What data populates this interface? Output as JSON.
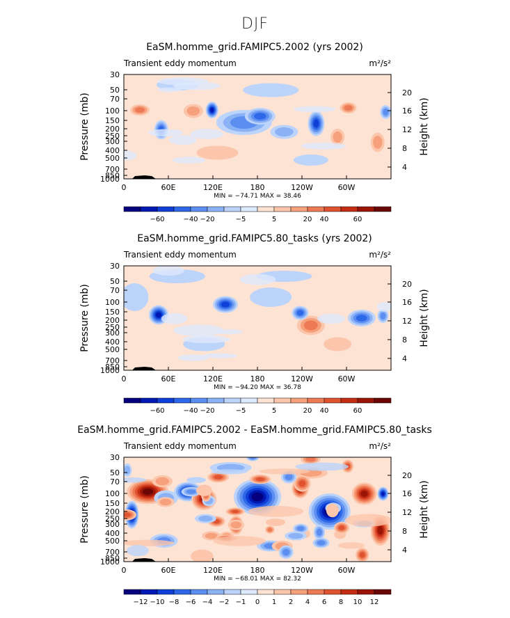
{
  "page": {
    "season_title": "DJF"
  },
  "chart_data": [
    {
      "type": "heatmap",
      "title": "EaSM.homme_grid.FAMIPC5.2002 (yrs 2002)",
      "variable": "Transient eddy momentum",
      "units": "m²/s²",
      "ylabel": "Pressure (mb)",
      "ylabel_right": "Height (km)",
      "x_ticks": [
        "0",
        "60E",
        "120E",
        "180",
        "120W",
        "60W"
      ],
      "y_ticks": [
        "30",
        "50",
        "70",
        "100",
        "150",
        "200",
        "250",
        "300",
        "400",
        "500",
        "700",
        "850",
        "1000"
      ],
      "y_ticks_right": [
        "20",
        "16",
        "12",
        "8",
        "4"
      ],
      "stats": "MIN = −74.71   MAX =  38.46",
      "min": -74.71,
      "max": 38.46,
      "colorbar_labels": [
        "−60",
        "−40",
        "−20",
        "−5",
        "5",
        "20",
        "40",
        "60"
      ],
      "colorbar_colors": [
        "#06007f",
        "#0019b4",
        "#0f3fd6",
        "#2e68e8",
        "#5c8df0",
        "#8cb2f6",
        "#bcd3fa",
        "#dde9fd",
        "#fde3d4",
        "#fbc6ab",
        "#f6a07c",
        "#ee7a55",
        "#e05330",
        "#c42d13",
        "#9a1508",
        "#6b0606"
      ]
    },
    {
      "type": "heatmap",
      "title": "EaSM.homme_grid.FAMIPC5.80_tasks (yrs 2002)",
      "variable": "Transient eddy momentum",
      "units": "m²/s²",
      "ylabel": "Pressure (mb)",
      "ylabel_right": "Height (km)",
      "x_ticks": [
        "0",
        "60E",
        "120E",
        "180",
        "120W",
        "60W"
      ],
      "y_ticks": [
        "30",
        "50",
        "70",
        "100",
        "150",
        "200",
        "250",
        "300",
        "400",
        "500",
        "700",
        "850",
        "1000"
      ],
      "y_ticks_right": [
        "20",
        "16",
        "12",
        "8",
        "4"
      ],
      "stats": "MIN = −94.20   MAX =  36.78",
      "min": -94.2,
      "max": 36.78,
      "colorbar_labels": [
        "−60",
        "−40",
        "−20",
        "−5",
        "5",
        "20",
        "40",
        "60"
      ],
      "colorbar_colors": [
        "#06007f",
        "#0019b4",
        "#0f3fd6",
        "#2e68e8",
        "#5c8df0",
        "#8cb2f6",
        "#bcd3fa",
        "#dde9fd",
        "#fde3d4",
        "#fbc6ab",
        "#f6a07c",
        "#ee7a55",
        "#e05330",
        "#c42d13",
        "#9a1508",
        "#6b0606"
      ]
    },
    {
      "type": "heatmap",
      "title": "EaSM.homme_grid.FAMIPC5.2002 - EaSM.homme_grid.FAMIPC5.80_tasks",
      "variable": "Transient eddy momentum",
      "units": "m²/s²",
      "ylabel": "Pressure (mb)",
      "ylabel_right": "Height (km)",
      "x_ticks": [
        "0",
        "60E",
        "120E",
        "180",
        "120W",
        "60W"
      ],
      "y_ticks": [
        "30",
        "50",
        "70",
        "100",
        "150",
        "200",
        "250",
        "300",
        "400",
        "500",
        "700",
        "850",
        "1000"
      ],
      "y_ticks_right": [
        "20",
        "16",
        "12",
        "8",
        "4"
      ],
      "stats": "MIN = −68.01   MAX =  82.32",
      "min": -68.01,
      "max": 82.32,
      "colorbar_labels": [
        "−12",
        "−10",
        "−8",
        "−6",
        "−4",
        "−2",
        "−1",
        "0",
        "1",
        "2",
        "4",
        "6",
        "8",
        "10",
        "12"
      ],
      "colorbar_colors": [
        "#06007f",
        "#0019b4",
        "#0f3fd6",
        "#2e68e8",
        "#5c8df0",
        "#8cb2f6",
        "#bcd3fa",
        "#dde9fd",
        "#fde3d4",
        "#fbc6ab",
        "#f6a07c",
        "#ee7a55",
        "#e05330",
        "#c42d13",
        "#9a1508",
        "#6b0606"
      ]
    }
  ]
}
